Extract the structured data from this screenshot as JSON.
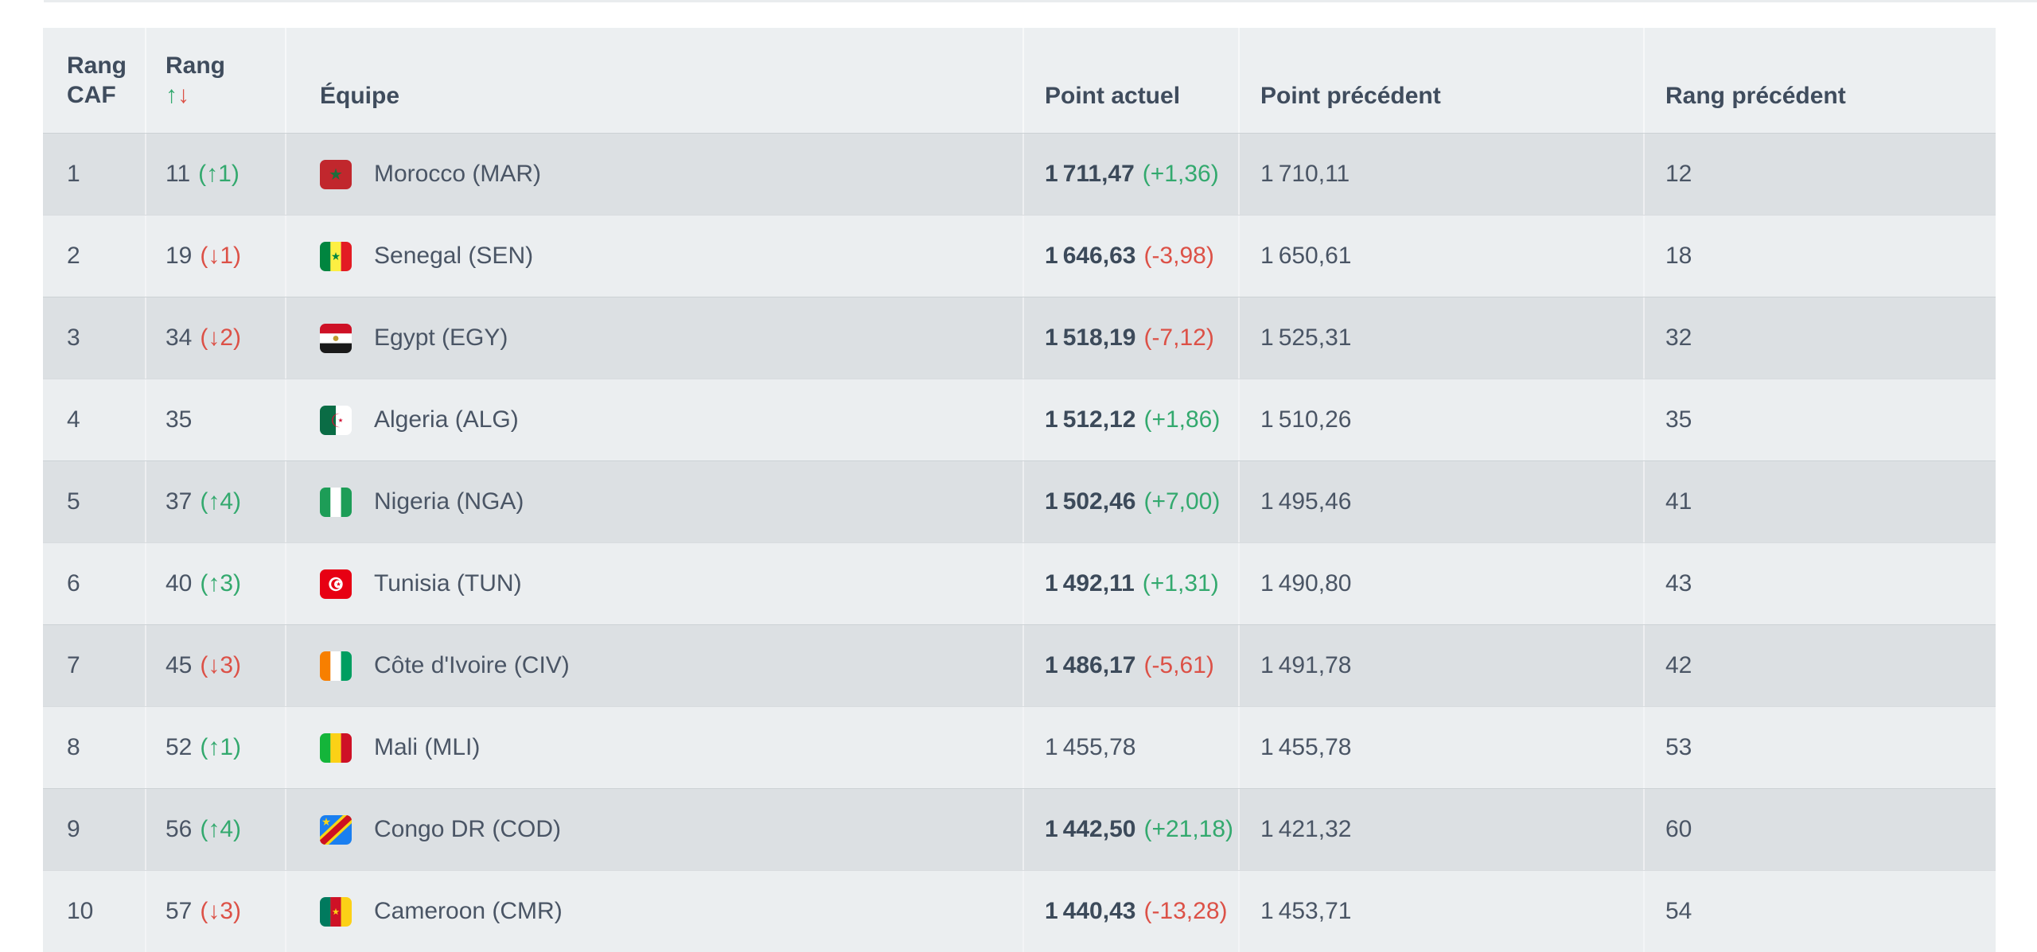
{
  "colors": {
    "positive": "#33a96e",
    "negative": "#dc5147",
    "header_bg": "#eceff1",
    "row_dark": "#dce0e3",
    "row_light": "#ebeef0",
    "header_text": "#3f4c5d",
    "cell_text": "#4a5565"
  },
  "table": {
    "columns": [
      {
        "id": "rang-caf",
        "label": "Rang CAF",
        "two_line": true
      },
      {
        "id": "rang",
        "label": "Rang",
        "sort_up": "↑",
        "sort_down": "↓"
      },
      {
        "id": "equipe",
        "label": "Équipe"
      },
      {
        "id": "point-actuel",
        "label": "Point actuel"
      },
      {
        "id": "point-precedent",
        "label": "Point précédent"
      },
      {
        "id": "rang-precedent",
        "label": "Rang précédent"
      }
    ],
    "rows": [
      {
        "rang_caf": "1",
        "rang": "11",
        "rang_delta": "(↑1)",
        "rang_delta_dir": "up",
        "flag": "MAR",
        "team": "Morocco (MAR)",
        "point_actuel": "1 711,47",
        "point_delta": "(+1,36)",
        "point_delta_dir": "up",
        "point_precedent": "1 710,11",
        "rang_precedent": "12"
      },
      {
        "rang_caf": "2",
        "rang": "19",
        "rang_delta": "(↓1)",
        "rang_delta_dir": "down",
        "flag": "SEN",
        "team": "Senegal (SEN)",
        "point_actuel": "1 646,63",
        "point_delta": "(-3,98)",
        "point_delta_dir": "down",
        "point_precedent": "1 650,61",
        "rang_precedent": "18"
      },
      {
        "rang_caf": "3",
        "rang": "34",
        "rang_delta": "(↓2)",
        "rang_delta_dir": "down",
        "flag": "EGY",
        "team": "Egypt (EGY)",
        "point_actuel": "1 518,19",
        "point_delta": "(-7,12)",
        "point_delta_dir": "down",
        "point_precedent": "1 525,31",
        "rang_precedent": "32"
      },
      {
        "rang_caf": "4",
        "rang": "35",
        "rang_delta": "",
        "rang_delta_dir": "",
        "flag": "ALG",
        "team": "Algeria (ALG)",
        "point_actuel": "1 512,12",
        "point_delta": "(+1,86)",
        "point_delta_dir": "up",
        "point_precedent": "1 510,26",
        "rang_precedent": "35"
      },
      {
        "rang_caf": "5",
        "rang": "37",
        "rang_delta": "(↑4)",
        "rang_delta_dir": "up",
        "flag": "NGA",
        "team": "Nigeria (NGA)",
        "point_actuel": "1 502,46",
        "point_delta": "(+7,00)",
        "point_delta_dir": "up",
        "point_precedent": "1 495,46",
        "rang_precedent": "41"
      },
      {
        "rang_caf": "6",
        "rang": "40",
        "rang_delta": "(↑3)",
        "rang_delta_dir": "up",
        "flag": "TUN",
        "team": "Tunisia (TUN)",
        "point_actuel": "1 492,11",
        "point_delta": "(+1,31)",
        "point_delta_dir": "up",
        "point_precedent": "1 490,80",
        "rang_precedent": "43"
      },
      {
        "rang_caf": "7",
        "rang": "45",
        "rang_delta": "(↓3)",
        "rang_delta_dir": "down",
        "flag": "CIV",
        "team": "Côte d'Ivoire (CIV)",
        "point_actuel": "1 486,17",
        "point_delta": "(-5,61)",
        "point_delta_dir": "down",
        "point_precedent": "1 491,78",
        "rang_precedent": "42"
      },
      {
        "rang_caf": "8",
        "rang": "52",
        "rang_delta": "(↑1)",
        "rang_delta_dir": "up",
        "flag": "MLI",
        "team": "Mali (MLI)",
        "point_actuel": "1 455,78",
        "point_delta": "",
        "point_delta_dir": "",
        "point_precedent": "1 455,78",
        "rang_precedent": "53"
      },
      {
        "rang_caf": "9",
        "rang": "56",
        "rang_delta": "(↑4)",
        "rang_delta_dir": "up",
        "flag": "COD",
        "team": "Congo DR (COD)",
        "point_actuel": "1 442,50",
        "point_delta": "(+21,18)",
        "point_delta_dir": "up",
        "point_precedent": "1 421,32",
        "rang_precedent": "60"
      },
      {
        "rang_caf": "10",
        "rang": "57",
        "rang_delta": "(↓3)",
        "rang_delta_dir": "down",
        "flag": "CMR",
        "team": "Cameroon (CMR)",
        "point_actuel": "1 440,43",
        "point_delta": "(-13,28)",
        "point_delta_dir": "down",
        "point_precedent": "1 453,71",
        "rang_precedent": "54"
      }
    ]
  }
}
